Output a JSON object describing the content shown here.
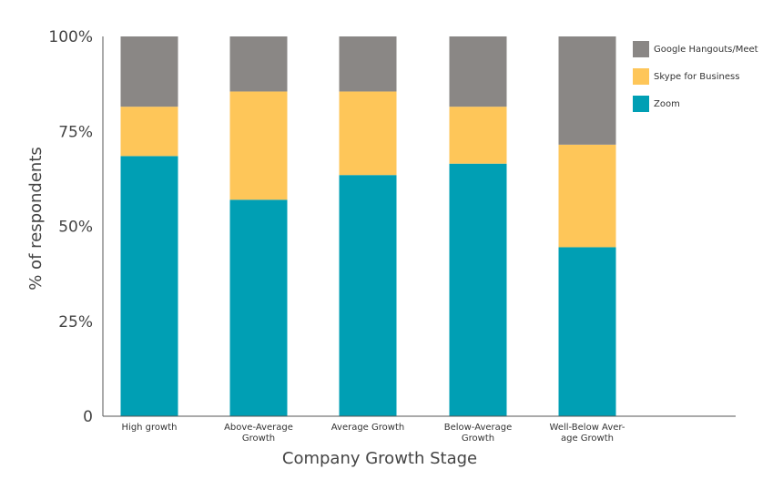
{
  "chart_data": {
    "type": "bar",
    "stacked": true,
    "title": "",
    "xlabel": "Company Growth Stage",
    "ylabel": "% of respondents",
    "ylim": [
      0,
      100
    ],
    "yticks": [
      {
        "value": 0,
        "label": "0"
      },
      {
        "value": 25,
        "label": "25%"
      },
      {
        "value": 50,
        "label": "50%"
      },
      {
        "value": 75,
        "label": "75%"
      },
      {
        "value": 100,
        "label": "100%"
      }
    ],
    "categories": [
      [
        "High growth"
      ],
      [
        "Above-Average",
        "Growth"
      ],
      [
        "Average Growth"
      ],
      [
        "Below-Average",
        "Growth"
      ],
      [
        "Well-Below Aver-",
        "age Growth"
      ]
    ],
    "series": [
      {
        "name": "Zoom",
        "color": "#009fb4",
        "values": [
          68.5,
          57,
          63.5,
          66.5,
          44.5
        ]
      },
      {
        "name": "Skype for Business",
        "color": "#fec659",
        "values": [
          13,
          28.5,
          22,
          15,
          27
        ]
      },
      {
        "name": "Google Hangouts/Meet",
        "color": "#8a8785",
        "values": [
          18.5,
          14.5,
          14.5,
          18.5,
          28.5
        ]
      }
    ],
    "legend": {
      "position": "top-right",
      "order": [
        "Google Hangouts/Meet",
        "Skype for Business",
        "Zoom"
      ]
    },
    "grid": false
  }
}
